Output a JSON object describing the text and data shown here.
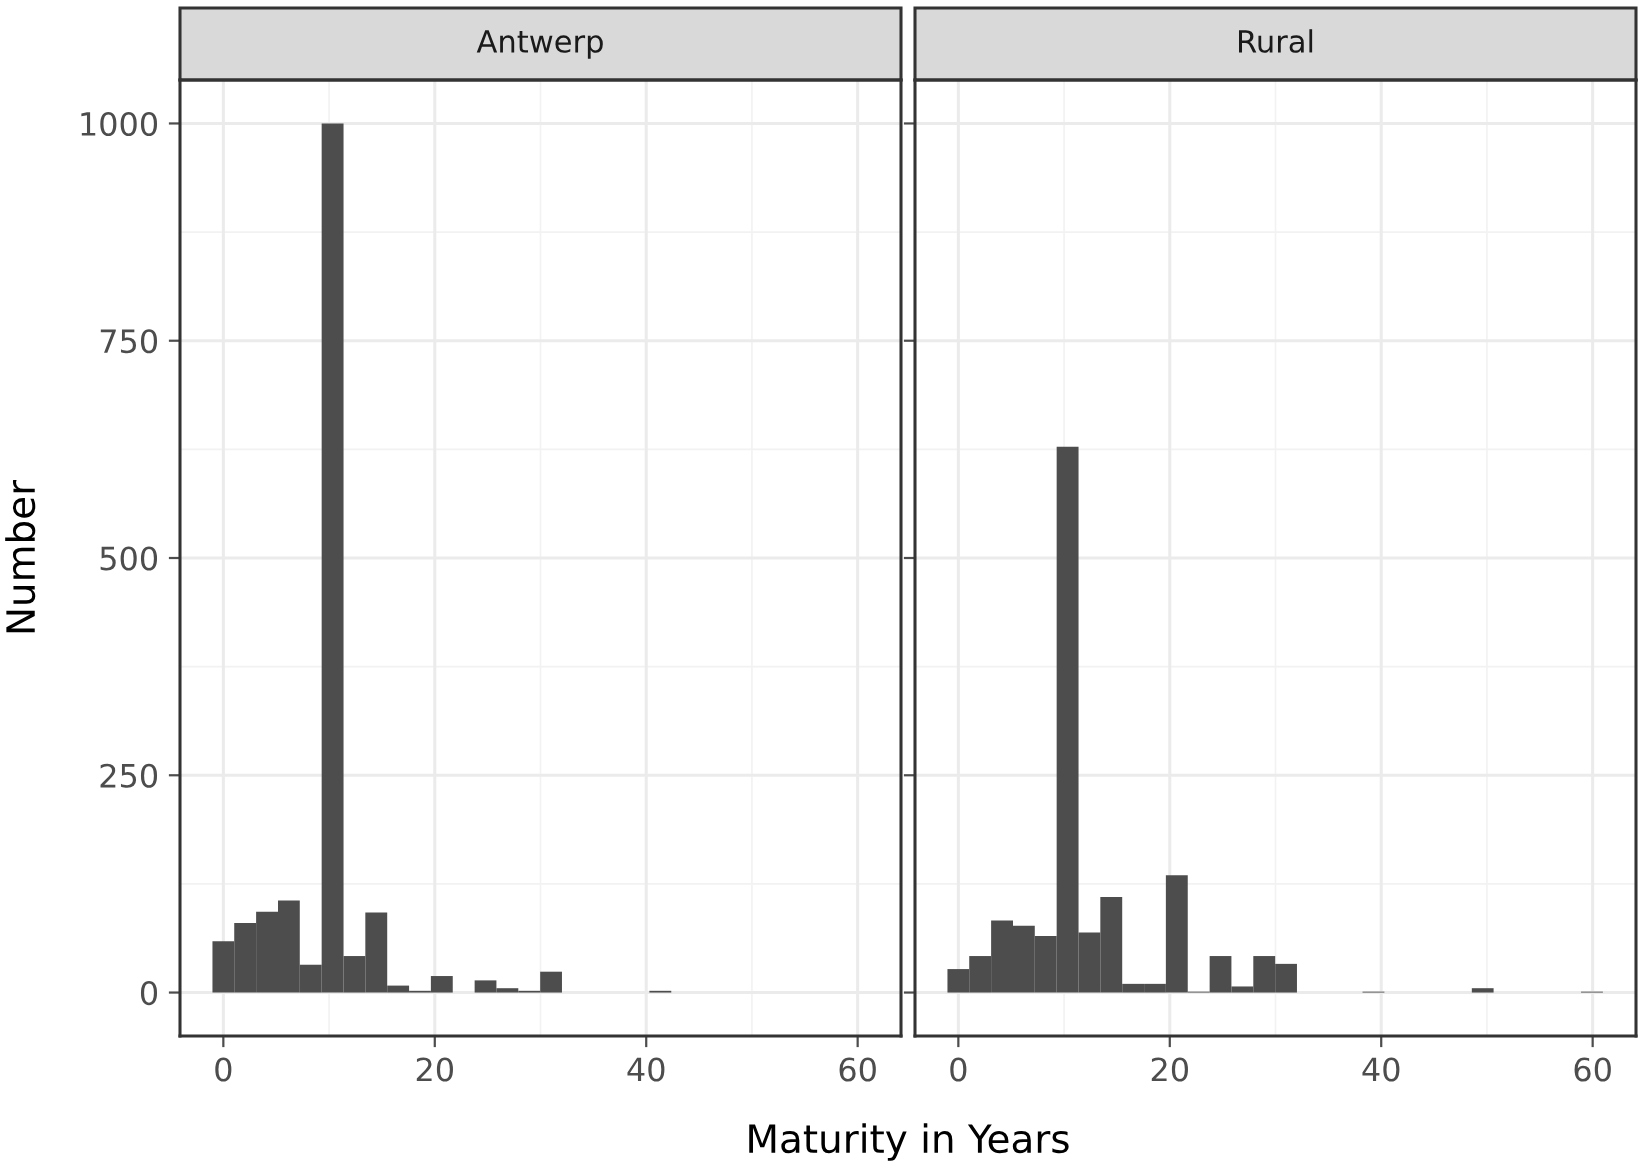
{
  "chart_data": [
    {
      "type": "histogram",
      "title": "Antwerp",
      "xlabel": "Maturity in Years",
      "ylabel": "Number",
      "color": "#4d4d4d",
      "grid": true,
      "bins": [
        -1.03,
        1.03,
        3.1,
        5.17,
        7.23,
        9.3,
        11.37,
        13.43,
        15.5,
        17.57,
        19.63,
        21.7,
        23.77,
        25.83,
        27.9,
        29.97,
        32.03,
        34.1,
        36.17,
        38.23,
        40.3,
        42.37,
        44.43,
        46.5,
        48.57,
        50.63,
        52.7,
        54.77,
        56.83,
        58.9,
        60.97
      ],
      "values": [
        59,
        80,
        93,
        106,
        32,
        1000,
        42,
        92,
        8,
        2,
        19,
        0,
        14,
        5,
        2,
        24,
        0,
        0,
        0,
        0,
        2,
        0,
        0,
        0,
        0,
        0,
        0,
        0,
        0,
        0
      ],
      "xlim": [
        -4.1,
        64.1
      ],
      "xticks": [
        0,
        20,
        40,
        60
      ],
      "ylim": [
        -50,
        1050
      ],
      "yticks": [
        0,
        250,
        500,
        750,
        1000
      ]
    },
    {
      "type": "histogram",
      "title": "Rural",
      "color": "#4d4d4d",
      "grid": true,
      "tick_labels": "x",
      "bins": [
        -1.03,
        1.03,
        3.1,
        5.17,
        7.23,
        9.3,
        11.37,
        13.43,
        15.5,
        17.57,
        19.63,
        21.7,
        23.77,
        25.83,
        27.9,
        29.97,
        32.03,
        34.1,
        36.17,
        38.23,
        40.3,
        42.37,
        44.43,
        46.5,
        48.57,
        50.63,
        52.7,
        54.77,
        56.83,
        58.9,
        60.97
      ],
      "values": [
        27,
        42,
        83,
        77,
        65,
        628,
        69,
        110,
        10,
        10,
        135,
        1,
        42,
        7,
        42,
        33,
        0,
        0,
        0,
        1,
        0,
        0,
        0,
        0,
        5,
        0,
        0,
        0,
        0,
        1
      ],
      "xlim": [
        -4.1,
        64.1
      ],
      "xticks": [
        0,
        20,
        40,
        60
      ],
      "ylim": [
        -50,
        1050
      ],
      "yticks": [
        0,
        250,
        500,
        750,
        1000
      ]
    }
  ]
}
